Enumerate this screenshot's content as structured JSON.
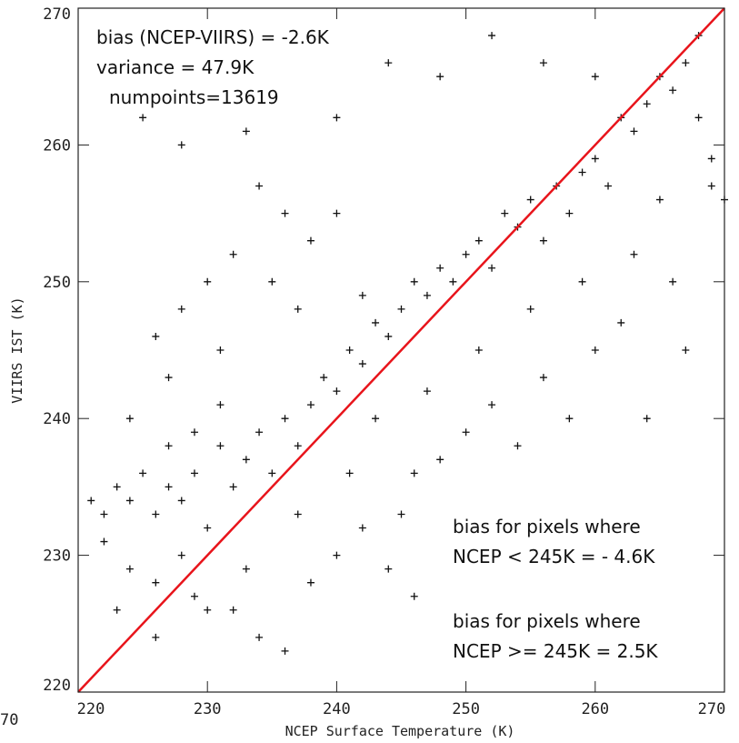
{
  "chart_data": {
    "type": "scatter",
    "x_label": "NCEP Surface Temperature (K)",
    "y_label": "VIIRS IST (K)",
    "edge_fragment": "70",
    "annotations_top": [
      "bias (NCEP-VIIRS) = -2.6K",
      "variance = 47.9K",
      "numpoints=13619"
    ],
    "annotations_bottom": [
      "bias for pixels where",
      "NCEP < 245K = - 4.6K",
      "bias for pixels where",
      "NCEP >= 245K = 2.5K"
    ],
    "xlim": [
      220,
      270
    ],
    "ylim": [
      220,
      270
    ],
    "xticks": [
      220,
      230,
      240,
      250,
      260,
      270
    ],
    "yticks": [
      220,
      230,
      240,
      250,
      260,
      270
    ],
    "marker_color": "#111111",
    "reference_line": {
      "x": [
        220,
        270
      ],
      "y": [
        220,
        270
      ],
      "color": "#e8141b"
    },
    "series": [
      {
        "color": "#111111",
        "x": [
          221,
          222,
          223,
          224,
          225,
          226,
          227,
          228,
          222,
          224,
          226,
          228,
          230,
          229,
          231,
          232,
          233,
          234,
          235,
          236,
          237,
          238,
          239,
          240,
          241,
          242,
          243,
          244,
          245,
          246,
          247,
          248,
          249,
          250,
          251,
          252,
          253,
          254,
          255,
          256,
          257,
          258,
          259,
          260,
          261,
          262,
          263,
          264,
          265,
          266,
          267,
          268,
          269,
          270,
          269,
          268,
          226,
          227,
          228,
          230,
          231,
          232,
          234,
          236,
          235,
          238,
          225,
          228,
          233,
          240,
          244,
          248,
          252,
          256,
          260,
          229,
          232,
          234,
          236,
          238,
          240,
          242,
          244,
          246,
          248,
          250,
          252,
          254,
          256,
          258,
          260,
          262,
          264,
          266,
          267,
          246,
          245,
          223,
          226,
          230,
          233,
          237,
          241,
          243,
          247,
          251,
          255,
          259,
          263,
          265,
          231,
          229,
          224,
          227,
          237,
          240,
          242
        ],
        "values": [
          234,
          233,
          235,
          234,
          236,
          233,
          235,
          234,
          231,
          229,
          228,
          230,
          232,
          236,
          238,
          235,
          237,
          239,
          236,
          240,
          238,
          241,
          243,
          242,
          245,
          244,
          247,
          246,
          248,
          250,
          249,
          251,
          250,
          252,
          253,
          251,
          255,
          254,
          256,
          253,
          257,
          255,
          258,
          259,
          257,
          262,
          261,
          263,
          265,
          264,
          266,
          268,
          257,
          256,
          259,
          262,
          246,
          243,
          248,
          250,
          245,
          252,
          257,
          255,
          250,
          253,
          262,
          260,
          261,
          262,
          266,
          265,
          268,
          266,
          265,
          227,
          226,
          224,
          223,
          228,
          230,
          232,
          229,
          236,
          237,
          239,
          241,
          238,
          243,
          240,
          245,
          247,
          240,
          250,
          245,
          227,
          233,
          226,
          224,
          226,
          229,
          233,
          236,
          240,
          242,
          245,
          248,
          250,
          252,
          256,
          241,
          239,
          240,
          238,
          248,
          255,
          249
        ]
      }
    ]
  }
}
